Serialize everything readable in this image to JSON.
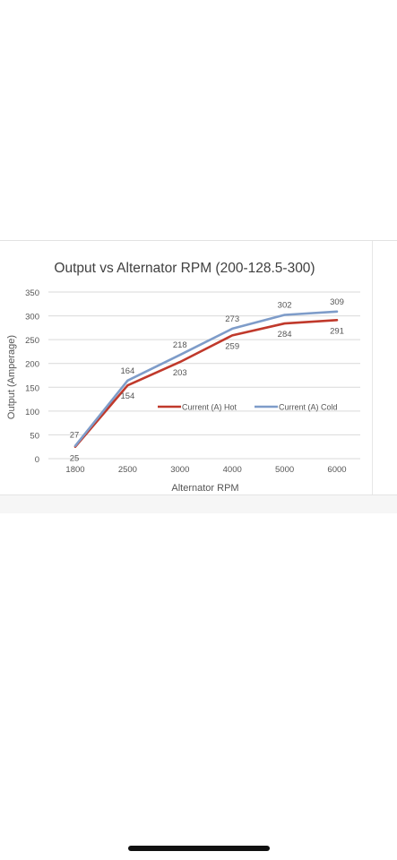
{
  "chart_data": {
    "type": "line",
    "title": "Output vs Alternator RPM (200-128.5-300)",
    "xlabel": "Alternator RPM",
    "ylabel": "Output (Amperage)",
    "categories": [
      "1800",
      "2500",
      "3000",
      "4000",
      "5000",
      "6000"
    ],
    "ylim": [
      0,
      350
    ],
    "yticks": [
      0,
      50,
      100,
      150,
      200,
      250,
      300,
      350
    ],
    "grid": true,
    "legend_position": "inside-center-right",
    "series": [
      {
        "name": "Current (A) Hot",
        "color": "#c0392b",
        "values": [
          25,
          154,
          203,
          259,
          284,
          291
        ]
      },
      {
        "name": "Current (A) Cold",
        "color": "#7e9cc9",
        "values": [
          27,
          164,
          218,
          273,
          302,
          309
        ]
      }
    ]
  },
  "colors": {
    "grid": "#d9d9d9",
    "text": "#555555"
  }
}
